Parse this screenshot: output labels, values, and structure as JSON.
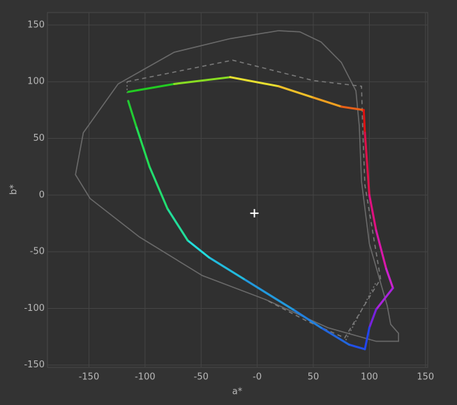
{
  "chart_data": {
    "type": "line",
    "x_label": "a*",
    "y_label": "b*",
    "xlim": [
      -187,
      152
    ],
    "ylim": [
      -152,
      161
    ],
    "xticks": [
      -150,
      -100,
      -50,
      {
        "value": 0,
        "label": "-0"
      },
      50,
      100,
      150
    ],
    "yticks": [
      -150,
      -100,
      -50,
      0,
      50,
      100,
      150
    ],
    "grid": true,
    "series": [
      {
        "color": "#6a6a6a",
        "style": "solid",
        "x": [
          19,
          -24,
          -74,
          -124,
          -155,
          -162,
          -149,
          -105,
          -49,
          7,
          63,
          106,
          126,
          126,
          119,
          116,
          100,
          93,
          91,
          88,
          75,
          57,
          38,
          19
        ],
        "values": [
          145,
          138,
          126,
          98,
          55,
          18,
          -3,
          -37,
          -71,
          -92,
          -117,
          -129,
          -129,
          -122,
          -114,
          -98,
          -43,
          12,
          61,
          92,
          117,
          135,
          144,
          145
        ]
      },
      {
        "color": "#7a7a7a",
        "style": "dashed",
        "x": [
          -116,
          -22,
          50,
          93,
          94,
          96,
          110,
          97,
          78,
          44,
          7
        ],
        "values": [
          100,
          119,
          101,
          96,
          61,
          9,
          -74,
          -95,
          -126,
          -111,
          -92
        ]
      },
      {
        "color": "#7a7a7a",
        "style": "dotted",
        "x": [
          -116,
          -116,
          null,
          79,
          106
        ],
        "values": [
          100,
          90,
          null,
          -128,
          -77
        ]
      },
      {
        "style": "gradient",
        "colors": [
          "#22cc22",
          "#88dd22",
          "#e8e030",
          "#f0c028",
          "#f0a020",
          "#e86018",
          "#dd1111",
          "#e0104a",
          "#e01080",
          "#d818a8",
          "#cc22cc",
          "#aa22dd",
          "#7722dd",
          "#2244ee",
          "#2250e8",
          "#2266dd",
          "#2280dd",
          "#2299dd",
          "#22bbdd",
          "#22dddd",
          "#22dd99",
          "#22dd70",
          "#22dd55",
          "#22cc33"
        ],
        "x": [
          -115,
          -74,
          -24,
          19,
          50,
          75,
          95,
          96,
          100,
          106,
          115,
          121,
          106,
          100,
          96,
          82,
          57,
          32,
          -12,
          -43,
          -62,
          -80,
          -96,
          -108,
          -115,
          -115
        ],
        "values": [
          91,
          98,
          104,
          96,
          86,
          78,
          75,
          55,
          0,
          -31,
          -65,
          -82,
          -101,
          -117,
          -136,
          -132,
          -117,
          -101,
          -74,
          -55,
          -40,
          -12,
          25,
          61,
          83,
          91
        ]
      }
    ],
    "marker": {
      "x": -2.5,
      "y": -16,
      "color": "#ffffff"
    }
  }
}
